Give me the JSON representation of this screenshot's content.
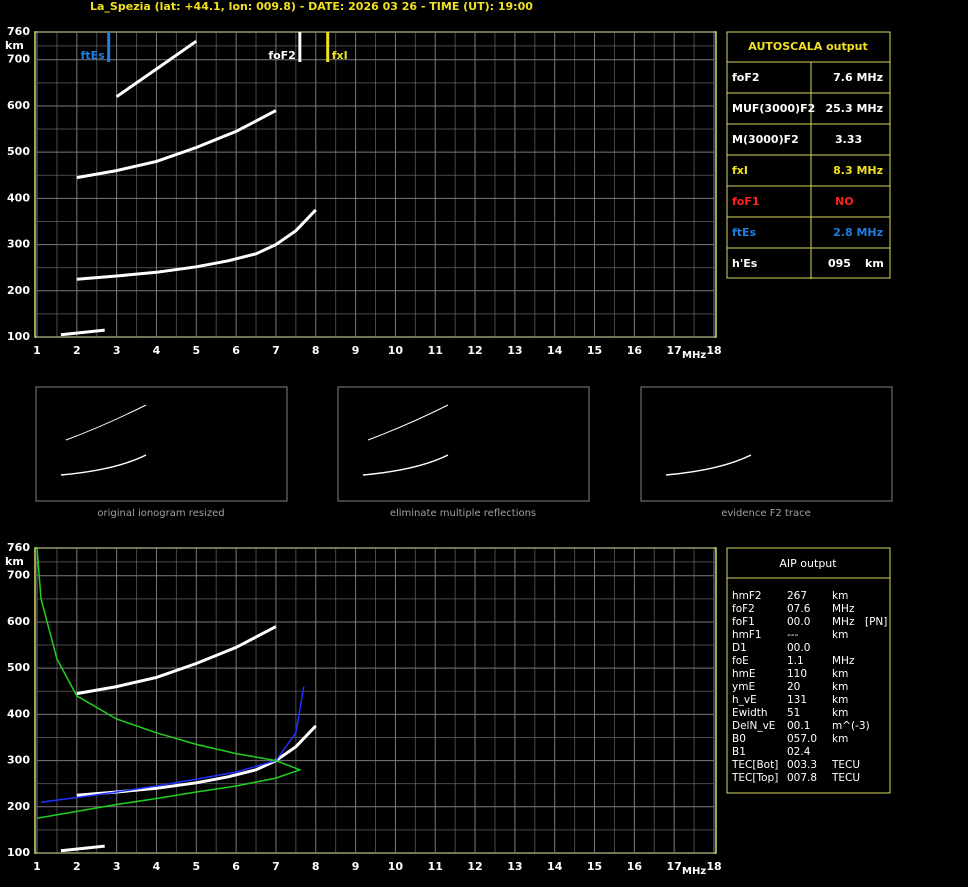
{
  "header": "La_Spezia (lat: +44.1, lon: 009.8) - DATE: 2026 03 26 - TIME (UT): 19:00",
  "chart_data": [
    {
      "type": "ionogram",
      "x_unit": "MHz",
      "y_unit": "km",
      "xlim": [
        1,
        18
      ],
      "ylim": [
        100,
        760
      ],
      "xticks": [
        1,
        2,
        3,
        4,
        5,
        6,
        7,
        8,
        9,
        10,
        11,
        12,
        13,
        14,
        15,
        16,
        17,
        18
      ],
      "yticks": [
        100,
        200,
        300,
        400,
        500,
        600,
        700,
        760
      ],
      "grid": true,
      "grid_color": "#7a7a7a",
      "frame_color": "#d8d860",
      "markers": [
        {
          "label": "ftEs",
          "value": 2.8,
          "color": "#1e7fe0"
        },
        {
          "label": "foF2",
          "value": 7.6,
          "color": "#ffffff"
        },
        {
          "label": "fxI",
          "value": 8.3,
          "color": "#f0e020"
        }
      ],
      "series": [
        {
          "color": "#ffffff",
          "x": [
            2.0,
            3.0,
            4.0,
            5.0,
            5.8,
            6.5,
            7.0,
            7.5,
            8.0
          ],
          "values": [
            225,
            232,
            240,
            252,
            265,
            280,
            300,
            330,
            375
          ]
        },
        {
          "color": "#ffffff",
          "x": [
            2.0,
            3.0,
            4.0,
            5.0,
            6.0,
            7.0
          ],
          "values": [
            445,
            460,
            480,
            510,
            545,
            590
          ]
        },
        {
          "color": "#ffffff",
          "x": [
            3.0,
            4.0,
            5.0
          ],
          "values": [
            620,
            680,
            740
          ]
        },
        {
          "color": "#ffffff",
          "x": [
            1.6,
            2.7
          ],
          "values": [
            105,
            115
          ]
        }
      ]
    },
    {
      "type": "ionogram",
      "x_unit": "MHz",
      "y_unit": "km",
      "xlim": [
        1,
        18
      ],
      "ylim": [
        100,
        760
      ],
      "xticks": [
        1,
        2,
        3,
        4,
        5,
        6,
        7,
        8,
        9,
        10,
        11,
        12,
        13,
        14,
        15,
        16,
        17,
        18
      ],
      "yticks": [
        100,
        200,
        300,
        400,
        500,
        600,
        700,
        760
      ],
      "grid": true,
      "grid_color": "#7a7a7a",
      "frame_color": "#d8d860",
      "series": [
        {
          "color": "#ffffff",
          "x": [
            2.0,
            3.0,
            4.0,
            5.0,
            5.8,
            6.5,
            7.0,
            7.5,
            8.0
          ],
          "values": [
            225,
            232,
            240,
            252,
            265,
            280,
            300,
            330,
            375
          ]
        },
        {
          "color": "#ffffff",
          "x": [
            2.0,
            3.0,
            4.0,
            5.0,
            6.0,
            7.0
          ],
          "values": [
            445,
            460,
            480,
            510,
            545,
            590
          ]
        },
        {
          "color": "#ffffff",
          "x": [
            1.6,
            2.7
          ],
          "values": [
            105,
            115
          ]
        },
        {
          "color": "#2030ff",
          "x": [
            1.1,
            2.0,
            3.0,
            4.0,
            5.0,
            6.0,
            7.0,
            7.5,
            7.7
          ],
          "values": [
            210,
            220,
            232,
            245,
            260,
            275,
            300,
            360,
            460
          ]
        },
        {
          "color": "#20d020",
          "x": [
            1.0,
            2.0,
            3.0,
            4.0,
            5.0,
            6.0,
            7.0,
            7.6,
            7.0,
            6.0,
            5.0,
            4.0,
            3.0,
            2.0,
            1.5,
            1.1,
            1.0
          ],
          "values": [
            175,
            190,
            205,
            218,
            232,
            245,
            262,
            280,
            300,
            315,
            335,
            360,
            390,
            440,
            520,
            650,
            760
          ]
        }
      ]
    }
  ],
  "autoscala": {
    "title": "AUTOSCALA output",
    "rows": [
      {
        "label": "foF2",
        "value": "7.6 MHz",
        "color": "#ffffff"
      },
      {
        "label": "MUF(3000)F2",
        "value": "25.3 MHz",
        "color": "#ffffff"
      },
      {
        "label": "M(3000)F2",
        "value": "3.33",
        "color": "#ffffff"
      },
      {
        "label": "fxI",
        "value": "8.3 MHz",
        "color": "#f0e020"
      },
      {
        "label": "foF1",
        "value": "NO",
        "color": "#ff2020"
      },
      {
        "label": "ftEs",
        "value": "2.8 MHz",
        "color": "#1e7fe0"
      },
      {
        "label": "h'Es",
        "value": "095",
        "unit": "km",
        "color": "#ffffff"
      }
    ]
  },
  "thumbnails": [
    "original ionogram resized",
    "eliminate multiple reflections",
    "evidence F2 trace"
  ],
  "aip": {
    "title": "AIP output",
    "rows": [
      [
        "hmF2",
        "267",
        "km"
      ],
      [
        "foF2",
        "07.6",
        "MHz"
      ],
      [
        "foF1",
        "00.0",
        "MHz",
        "[PN]"
      ],
      [
        "hmF1",
        "---",
        "km"
      ],
      [
        "D1",
        "00.0"
      ],
      [
        "foE",
        "1.1",
        "MHz"
      ],
      [
        "hmE",
        "110",
        "km"
      ],
      [
        "ymE",
        "20",
        "km"
      ],
      [
        "h_vE",
        "131",
        "km"
      ],
      [
        "Ewidth",
        "51",
        "km"
      ],
      [
        "DelN_vE",
        "00.1",
        "m^(-3)"
      ],
      [
        "B0",
        "057.0",
        "km"
      ],
      [
        "B1",
        "02.4"
      ],
      [
        "TEC[Bot]",
        "003.3",
        "TECU"
      ],
      [
        "TEC[Top]",
        "007.8",
        "TECU"
      ]
    ]
  }
}
